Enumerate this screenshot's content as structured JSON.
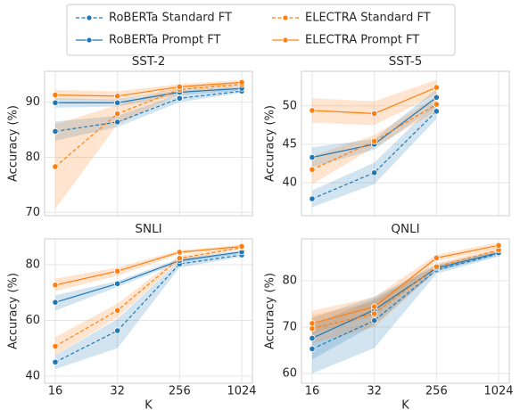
{
  "chart_data": [
    {
      "type": "line",
      "title": "SST-2",
      "ylabel": "Accuracy (%)",
      "categories": [
        "16",
        "32",
        "256",
        "1024"
      ],
      "ylim": [
        69.4,
        95.6
      ],
      "yticks": [
        70,
        80,
        90
      ],
      "grid": true,
      "series": [
        {
          "name": "RoBERTa Standard FT",
          "color": "#1f77b4",
          "dashed": true,
          "values": [
            84.7,
            86.4,
            90.7,
            92.0
          ],
          "lower": [
            83.0,
            85.5,
            90.0,
            91.7
          ],
          "upper": [
            86.5,
            87.5,
            91.5,
            92.5
          ]
        },
        {
          "name": "RoBERTa Prompt FT",
          "color": "#1f77b4",
          "dashed": false,
          "values": [
            89.9,
            89.9,
            91.8,
            92.5
          ],
          "lower": [
            89.0,
            89.2,
            91.3,
            92.1
          ],
          "upper": [
            90.7,
            90.5,
            92.2,
            92.9
          ]
        },
        {
          "name": "ELECTRA Standard FT",
          "color": "#ff7f0e",
          "dashed": true,
          "values": [
            78.3,
            87.9,
            92.3,
            93.2
          ],
          "lower": [
            70.6,
            86.0,
            91.5,
            92.8
          ],
          "upper": [
            86.0,
            89.5,
            93.0,
            93.6
          ]
        },
        {
          "name": "ELECTRA Prompt FT",
          "color": "#ff7f0e",
          "dashed": false,
          "values": [
            91.3,
            91.1,
            92.8,
            93.6
          ],
          "lower": [
            90.5,
            90.3,
            92.3,
            93.2
          ],
          "upper": [
            92.2,
            92.0,
            93.3,
            94.0
          ]
        }
      ]
    },
    {
      "type": "line",
      "title": "SST-5",
      "ylabel": "Accuracy (%)",
      "categories": [
        "16",
        "32",
        "256",
        "1024"
      ],
      "ylim": [
        35.7,
        54.5
      ],
      "yticks": [
        40,
        45,
        50
      ],
      "grid": true,
      "series": [
        {
          "name": "RoBERTa Standard FT",
          "color": "#1f77b4",
          "dashed": true,
          "values": [
            37.9,
            41.3,
            49.3,
            null
          ],
          "lower": [
            36.8,
            39.8,
            48.3,
            null
          ],
          "upper": [
            39.0,
            42.6,
            50.5,
            null
          ]
        },
        {
          "name": "RoBERTa Prompt FT",
          "color": "#1f77b4",
          "dashed": false,
          "values": [
            43.3,
            45.0,
            51.1,
            null
          ],
          "lower": [
            42.0,
            44.3,
            50.0,
            null
          ],
          "upper": [
            44.6,
            45.7,
            52.2,
            null
          ]
        },
        {
          "name": "ELECTRA Standard FT",
          "color": "#ff7f0e",
          "dashed": true,
          "values": [
            41.7,
            45.4,
            50.2,
            null
          ],
          "lower": [
            39.8,
            44.6,
            49.3,
            null
          ],
          "upper": [
            43.5,
            46.2,
            51.2,
            null
          ]
        },
        {
          "name": "ELECTRA Prompt FT",
          "color": "#ff7f0e",
          "dashed": false,
          "values": [
            49.4,
            49.0,
            52.4,
            null
          ],
          "lower": [
            47.8,
            47.5,
            51.5,
            null
          ],
          "upper": [
            51.0,
            50.6,
            53.4,
            null
          ]
        }
      ]
    },
    {
      "type": "line",
      "title": "SNLI",
      "ylabel": "Accuracy (%)",
      "xlabel": "K",
      "categories": [
        "16",
        "32",
        "256",
        "1024"
      ],
      "ylim": [
        37.4,
        89.3
      ],
      "yticks": [
        40,
        60,
        80
      ],
      "grid": true,
      "series": [
        {
          "name": "RoBERTa Standard FT",
          "color": "#1f77b4",
          "dashed": true,
          "values": [
            45.0,
            56.3,
            80.3,
            83.5
          ],
          "lower": [
            42.5,
            50.0,
            79.0,
            82.8
          ],
          "upper": [
            47.5,
            60.5,
            81.5,
            84.2
          ]
        },
        {
          "name": "RoBERTa Prompt FT",
          "color": "#1f77b4",
          "dashed": false,
          "values": [
            66.5,
            73.2,
            81.5,
            84.6
          ],
          "lower": [
            63.5,
            72.0,
            80.8,
            84.0
          ],
          "upper": [
            69.0,
            74.2,
            82.2,
            85.2
          ]
        },
        {
          "name": "ELECTRA Standard FT",
          "color": "#ff7f0e",
          "dashed": true,
          "values": [
            50.7,
            63.6,
            82.3,
            86.2
          ],
          "lower": [
            47.5,
            61.0,
            81.5,
            85.6
          ],
          "upper": [
            54.0,
            66.0,
            83.2,
            86.8
          ]
        },
        {
          "name": "ELECTRA Prompt FT",
          "color": "#ff7f0e",
          "dashed": false,
          "values": [
            72.7,
            77.7,
            84.5,
            86.6
          ],
          "lower": [
            70.5,
            76.0,
            83.8,
            86.0
          ],
          "upper": [
            75.0,
            79.0,
            85.2,
            87.2
          ]
        }
      ]
    },
    {
      "type": "line",
      "title": "QNLI",
      "ylabel": "Accuracy (%)",
      "xlabel": "K",
      "categories": [
        "16",
        "32",
        "256",
        "1024"
      ],
      "ylim": [
        57.9,
        89.0
      ],
      "yticks": [
        60,
        70,
        80
      ],
      "grid": true,
      "series": [
        {
          "name": "RoBERTa Standard FT",
          "color": "#1f77b4",
          "dashed": true,
          "values": [
            65.3,
            71.4,
            82.3,
            85.8
          ],
          "lower": [
            60.0,
            65.5,
            81.5,
            85.2
          ],
          "upper": [
            70.5,
            76.0,
            83.2,
            86.4
          ]
        },
        {
          "name": "RoBERTa Prompt FT",
          "color": "#1f77b4",
          "dashed": false,
          "values": [
            67.6,
            73.7,
            82.7,
            86.0
          ],
          "lower": [
            63.0,
            70.5,
            82.0,
            85.4
          ],
          "upper": [
            72.0,
            76.5,
            83.5,
            86.6
          ]
        },
        {
          "name": "ELECTRA Standard FT",
          "color": "#ff7f0e",
          "dashed": true,
          "values": [
            69.7,
            72.9,
            83.0,
            86.6
          ],
          "lower": [
            66.5,
            70.0,
            82.2,
            86.0
          ],
          "upper": [
            72.5,
            75.5,
            83.8,
            87.2
          ]
        },
        {
          "name": "ELECTRA Prompt FT",
          "color": "#ff7f0e",
          "dashed": false,
          "values": [
            70.8,
            74.4,
            84.9,
            87.6
          ],
          "lower": [
            68.5,
            72.5,
            84.2,
            87.0
          ],
          "upper": [
            73.5,
            76.5,
            85.6,
            88.2
          ]
        }
      ]
    }
  ]
}
